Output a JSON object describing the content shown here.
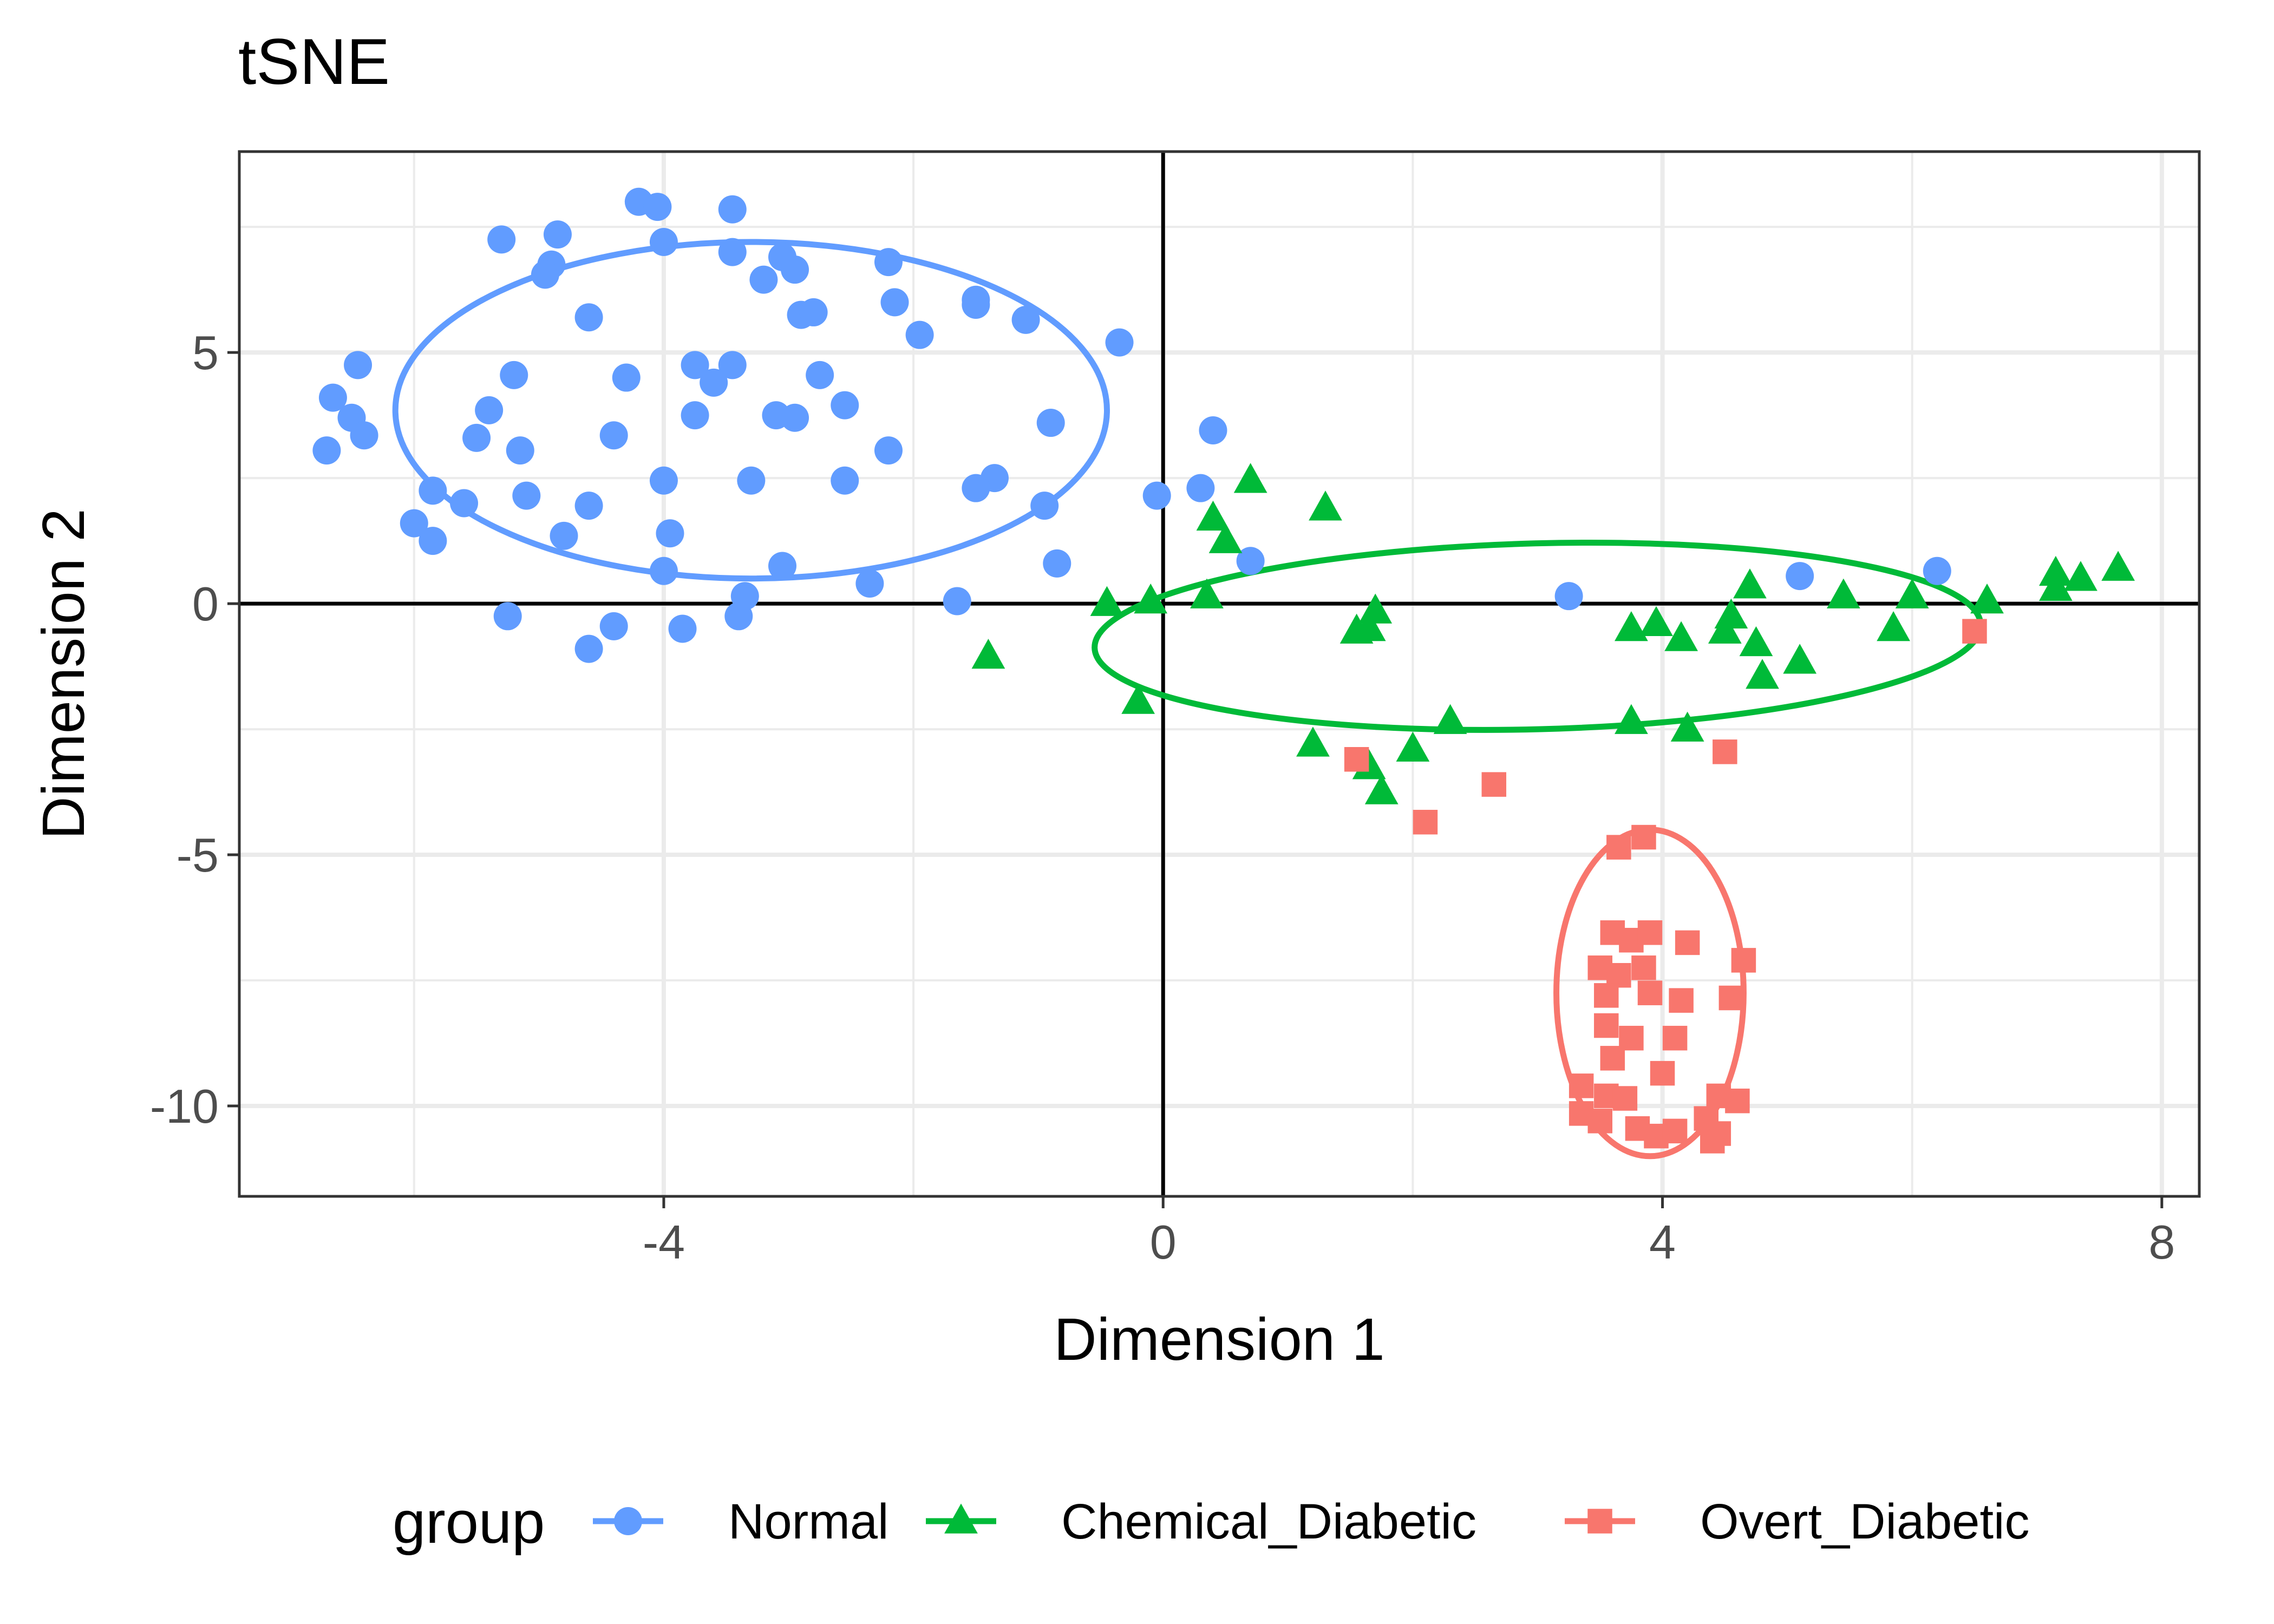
{
  "chart_data": {
    "type": "scatter",
    "title": "tSNE",
    "xlabel": "Dimension 1",
    "ylabel": "Dimension 2",
    "xlim": [
      -7.4,
      8.3
    ],
    "ylim": [
      -11.8,
      9.0
    ],
    "x_ticks": [
      -4,
      0,
      4,
      8
    ],
    "x_tick_labels": [
      "-4",
      "0",
      "4",
      "8"
    ],
    "y_ticks": [
      5,
      0,
      -5,
      -10
    ],
    "y_tick_labels": [
      "5",
      "0",
      "-5",
      "-10"
    ],
    "x_minor_ticks": [
      -6,
      -2,
      2,
      6
    ],
    "y_minor_ticks": [
      7.5,
      2.5,
      -2.5,
      -7.5
    ],
    "reference_lines": {
      "x": 0,
      "y": 0
    },
    "grid": true,
    "legend_title": "group",
    "legend_position": "bottom",
    "series": [
      {
        "name": "Normal",
        "color": "#619CFF",
        "shape": "circle",
        "ellipse": {
          "cx": -3.3,
          "cy": 3.85,
          "rx": 2.85,
          "ry": 3.35
        },
        "points": [
          [
            -4.2,
            8.0
          ],
          [
            -4.05,
            7.9
          ],
          [
            -3.45,
            7.85
          ],
          [
            -5.3,
            7.25
          ],
          [
            -4.85,
            7.35
          ],
          [
            -4.0,
            7.2
          ],
          [
            -3.45,
            7.0
          ],
          [
            -3.05,
            6.9
          ],
          [
            -2.2,
            6.8
          ],
          [
            -4.9,
            6.75
          ],
          [
            -4.95,
            6.55
          ],
          [
            -3.2,
            6.45
          ],
          [
            -2.95,
            6.65
          ],
          [
            -1.5,
            6.05
          ],
          [
            -1.5,
            5.95
          ],
          [
            -2.15,
            6.0
          ],
          [
            -4.6,
            5.7
          ],
          [
            -2.9,
            5.75
          ],
          [
            -2.8,
            5.8
          ],
          [
            -1.1,
            5.65
          ],
          [
            -1.95,
            5.35
          ],
          [
            -0.35,
            5.2
          ],
          [
            -6.45,
            4.75
          ],
          [
            -5.2,
            4.55
          ],
          [
            -3.75,
            4.75
          ],
          [
            -3.45,
            4.75
          ],
          [
            -2.75,
            4.55
          ],
          [
            -3.6,
            4.4
          ],
          [
            -4.3,
            4.5
          ],
          [
            -6.65,
            4.1
          ],
          [
            -2.55,
            3.95
          ],
          [
            -5.4,
            3.85
          ],
          [
            -6.5,
            3.7
          ],
          [
            -3.1,
            3.75
          ],
          [
            -2.95,
            3.7
          ],
          [
            -3.75,
            3.75
          ],
          [
            -6.4,
            3.35
          ],
          [
            -5.5,
            3.3
          ],
          [
            -4.4,
            3.35
          ],
          [
            -0.9,
            3.6
          ],
          [
            -6.7,
            3.05
          ],
          [
            -5.15,
            3.05
          ],
          [
            -2.2,
            3.05
          ],
          [
            -5.85,
            2.25
          ],
          [
            -5.1,
            2.15
          ],
          [
            -4.0,
            2.45
          ],
          [
            -3.3,
            2.45
          ],
          [
            -2.55,
            2.45
          ],
          [
            -1.35,
            2.5
          ],
          [
            -1.5,
            2.3
          ],
          [
            -5.6,
            2.0
          ],
          [
            -4.6,
            1.95
          ],
          [
            -6.0,
            1.6
          ],
          [
            -5.85,
            1.25
          ],
          [
            -4.8,
            1.35
          ],
          [
            -3.95,
            1.4
          ],
          [
            -0.95,
            1.95
          ],
          [
            -0.85,
            0.8
          ],
          [
            -3.05,
            0.75
          ],
          [
            -4.0,
            0.65
          ],
          [
            -2.35,
            0.4
          ],
          [
            -3.35,
            0.15
          ],
          [
            -1.65,
            0.05
          ],
          [
            -5.25,
            -0.25
          ],
          [
            -3.4,
            -0.25
          ],
          [
            -4.4,
            -0.45
          ],
          [
            -3.85,
            -0.5
          ],
          [
            -4.6,
            -0.9
          ],
          [
            -0.05,
            2.15
          ],
          [
            0.3,
            2.3
          ],
          [
            0.4,
            3.45
          ],
          [
            0.7,
            0.85
          ],
          [
            3.25,
            0.15
          ],
          [
            5.1,
            0.55
          ],
          [
            6.2,
            0.65
          ]
        ]
      },
      {
        "name": "Chemical_Diabetic",
        "color": "#00BA38",
        "shape": "triangle",
        "ellipse": {
          "cx": 3.0,
          "cy": -0.65,
          "rx": 3.55,
          "ry": 1.85,
          "angle": -1.5
        },
        "points": [
          [
            0.7,
            2.45
          ],
          [
            1.3,
            1.9
          ],
          [
            0.4,
            1.7
          ],
          [
            0.5,
            1.25
          ],
          [
            -1.4,
            -1.05
          ],
          [
            -0.45,
            0.0
          ],
          [
            -0.1,
            0.05
          ],
          [
            0.35,
            0.15
          ],
          [
            -0.2,
            -1.95
          ],
          [
            1.55,
            -0.55
          ],
          [
            1.65,
            -0.5
          ],
          [
            1.7,
            -0.15
          ],
          [
            1.2,
            -2.8
          ],
          [
            1.65,
            -3.25
          ],
          [
            1.75,
            -3.75
          ],
          [
            2.0,
            -2.9
          ],
          [
            2.3,
            -2.35
          ],
          [
            3.75,
            -0.5
          ],
          [
            3.95,
            -0.4
          ],
          [
            4.15,
            -0.7
          ],
          [
            4.5,
            -0.55
          ],
          [
            4.55,
            -0.25
          ],
          [
            4.7,
            0.35
          ],
          [
            4.75,
            -0.8
          ],
          [
            4.8,
            -1.45
          ],
          [
            5.1,
            -1.15
          ],
          [
            5.45,
            0.15
          ],
          [
            5.85,
            -0.5
          ],
          [
            6.0,
            0.15
          ],
          [
            6.6,
            0.05
          ],
          [
            3.75,
            -2.35
          ],
          [
            4.2,
            -2.5
          ],
          [
            7.15,
            0.6
          ],
          [
            7.35,
            0.5
          ],
          [
            7.65,
            0.7
          ],
          [
            7.15,
            0.3
          ]
        ]
      },
      {
        "name": "Overt_Diabetic",
        "color": "#F8766D",
        "shape": "square",
        "ellipse": {
          "cx": 3.9,
          "cy": -7.75,
          "rx": 0.75,
          "ry": 3.25
        },
        "points": [
          [
            1.55,
            -3.1
          ],
          [
            2.1,
            -4.35
          ],
          [
            2.65,
            -3.6
          ],
          [
            4.5,
            -2.95
          ],
          [
            6.5,
            -0.55
          ],
          [
            3.65,
            -4.85
          ],
          [
            3.85,
            -4.65
          ],
          [
            3.6,
            -6.55
          ],
          [
            3.75,
            -6.7
          ],
          [
            3.9,
            -6.55
          ],
          [
            4.2,
            -6.75
          ],
          [
            4.65,
            -7.1
          ],
          [
            3.5,
            -7.25
          ],
          [
            3.65,
            -7.4
          ],
          [
            3.85,
            -7.25
          ],
          [
            3.55,
            -7.8
          ],
          [
            3.9,
            -7.75
          ],
          [
            4.15,
            -7.9
          ],
          [
            4.55,
            -7.85
          ],
          [
            3.55,
            -8.4
          ],
          [
            3.75,
            -8.65
          ],
          [
            4.1,
            -8.65
          ],
          [
            3.6,
            -9.05
          ],
          [
            4.0,
            -9.35
          ],
          [
            3.35,
            -9.6
          ],
          [
            3.55,
            -9.8
          ],
          [
            3.7,
            -9.85
          ],
          [
            4.45,
            -9.8
          ],
          [
            4.6,
            -9.9
          ],
          [
            3.35,
            -10.15
          ],
          [
            3.5,
            -10.3
          ],
          [
            3.8,
            -10.45
          ],
          [
            3.95,
            -10.6
          ],
          [
            4.1,
            -10.5
          ],
          [
            4.45,
            -10.55
          ],
          [
            4.35,
            -10.25
          ],
          [
            4.4,
            -10.7
          ]
        ]
      }
    ]
  }
}
